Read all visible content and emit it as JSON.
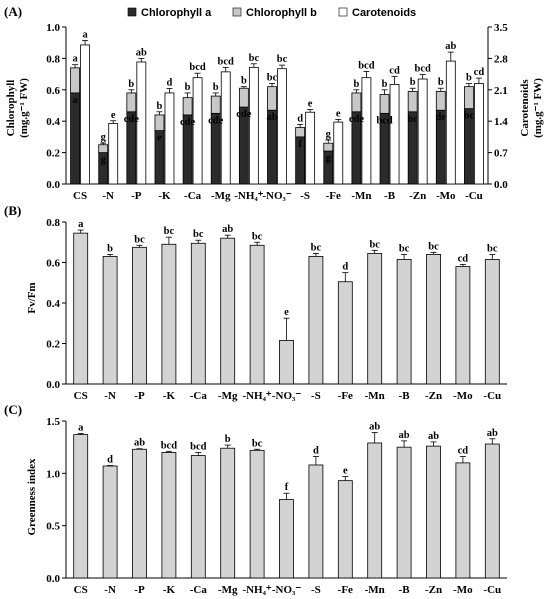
{
  "panels": {
    "A": {
      "label": "(A)",
      "ylabel_left_line1": "Chlorophyll",
      "ylabel_left_line2": "(mg.g⁻¹ FW)",
      "ylabel_right_line1": "Carotenoids",
      "ylabel_right_line2": "(mg.g⁻¹ FW)",
      "legend": [
        "Chlorophyll a",
        "Chlorophyll b",
        "Carotenoids"
      ]
    },
    "B": {
      "label": "(B)",
      "ylabel": "Fv/Fm"
    },
    "C": {
      "label": "(C)",
      "ylabel": "Greenness index"
    }
  },
  "colors": {
    "chl_a": "#2b2b2b",
    "chl_b": "#c8c8c8",
    "carotenoids": "#ffffff",
    "bar_gray": "#d3d3d3"
  },
  "chart_data": [
    {
      "type": "bar",
      "panel": "A",
      "categories": [
        "CS",
        "-N",
        "-P",
        "-K",
        "-Ca",
        "-Mg",
        "-NH₄⁺",
        "-NO₃⁻",
        "-S",
        "-Fe",
        "-Mn",
        "-B",
        "-Zn",
        "-Mo",
        "-Cu"
      ],
      "ylim": [
        0,
        1.0
      ],
      "yticks": [
        "0.0",
        "0.2",
        "0.4",
        "0.6",
        "0.8",
        "1.0"
      ],
      "y2lim": [
        0,
        3.5
      ],
      "y2ticks": [
        "0.0",
        "0.7",
        "1.4",
        "2.1",
        "2.8",
        "3.5"
      ],
      "stacked_series": [
        {
          "name": "Chlorophyll a",
          "values": [
            0.58,
            0.2,
            0.46,
            0.34,
            0.44,
            0.45,
            0.49,
            0.47,
            0.3,
            0.21,
            0.46,
            0.45,
            0.46,
            0.47,
            0.48
          ]
        },
        {
          "name": "Chlorophyll b",
          "values": [
            0.16,
            0.05,
            0.12,
            0.1,
            0.11,
            0.11,
            0.12,
            0.15,
            0.06,
            0.05,
            0.12,
            0.12,
            0.13,
            0.12,
            0.14
          ]
        }
      ],
      "stack_errors": [
        0.02,
        0.01,
        0.02,
        0.02,
        0.03,
        0.02,
        0.01,
        0.02,
        0.02,
        0.02,
        0.02,
        0.03,
        0.02,
        0.02,
        0.02
      ],
      "secondary_series": {
        "name": "Carotenoids",
        "values": [
          3.1,
          1.35,
          2.72,
          2.03,
          2.37,
          2.5,
          2.6,
          2.57,
          1.6,
          1.38,
          2.37,
          2.22,
          2.34,
          2.74,
          2.24
        ],
        "errors": [
          0.1,
          0.06,
          0.08,
          0.1,
          0.1,
          0.1,
          0.08,
          0.08,
          0.06,
          0.06,
          0.14,
          0.18,
          0.1,
          0.2,
          0.12
        ]
      },
      "letters_a": [
        "a",
        "g",
        "cde",
        "e",
        "cde",
        "cde",
        "cde",
        "ab",
        "f",
        "g",
        "cde",
        "bcd",
        "bc",
        "de",
        "bc"
      ],
      "letters_b": [
        "a",
        "g",
        "b",
        "b",
        "b",
        "b",
        "b",
        "bc",
        "d",
        "g",
        "b",
        "b",
        "b",
        "b",
        "b"
      ],
      "letters_car": [
        "a",
        "e",
        "ab",
        "d",
        "bcd",
        "bcd",
        "bc",
        "bc",
        "e",
        "e",
        "bcd",
        "cd",
        "bcd",
        "ab",
        "cd"
      ]
    },
    {
      "type": "bar",
      "panel": "B",
      "categories": [
        "CS",
        "-N",
        "-P",
        "-K",
        "-Ca",
        "-Mg",
        "-NH₄⁺",
        "-NO₃⁻",
        "-S",
        "-Fe",
        "-Mn",
        "-B",
        "-Zn",
        "-Mo",
        "-Cu"
      ],
      "ylim": [
        0,
        0.8
      ],
      "yticks": [
        "0.0",
        "0.2",
        "0.4",
        "0.6",
        "0.8"
      ],
      "values": [
        0.745,
        0.63,
        0.675,
        0.69,
        0.695,
        0.72,
        0.685,
        0.215,
        0.63,
        0.505,
        0.645,
        0.615,
        0.64,
        0.58,
        0.615
      ],
      "errors": [
        0.015,
        0.01,
        0.01,
        0.035,
        0.015,
        0.015,
        0.015,
        0.11,
        0.015,
        0.045,
        0.015,
        0.025,
        0.01,
        0.01,
        0.025
      ],
      "letters": [
        "a",
        "b",
        "bc",
        "bc",
        "bc",
        "ab",
        "bc",
        "e",
        "bc",
        "d",
        "bc",
        "bc",
        "bc",
        "cd",
        "bc"
      ]
    },
    {
      "type": "bar",
      "panel": "C",
      "categories": [
        "CS",
        "-N",
        "-P",
        "-K",
        "-Ca",
        "-Mg",
        "-NH₄⁺",
        "-NO₃⁻",
        "-S",
        "-Fe",
        "-Mn",
        "-B",
        "-Zn",
        "-Mo",
        "-Cu"
      ],
      "ylim": [
        0,
        1.5
      ],
      "yticks": [
        "0.0",
        "0.5",
        "1.0",
        "1.5"
      ],
      "values": [
        1.37,
        1.07,
        1.23,
        1.2,
        1.17,
        1.24,
        1.22,
        0.75,
        1.08,
        0.93,
        1.29,
        1.25,
        1.26,
        1.1,
        1.28
      ],
      "errors": [
        0.01,
        0.005,
        0.005,
        0.01,
        0.03,
        0.03,
        0.01,
        0.06,
        0.08,
        0.04,
        0.1,
        0.06,
        0.04,
        0.06,
        0.05
      ],
      "letters": [
        "a",
        "d",
        "ab",
        "bcd",
        "bcd",
        "b",
        "bc",
        "f",
        "d",
        "e",
        "ab",
        "ab",
        "ab",
        "cd",
        "ab"
      ]
    }
  ]
}
